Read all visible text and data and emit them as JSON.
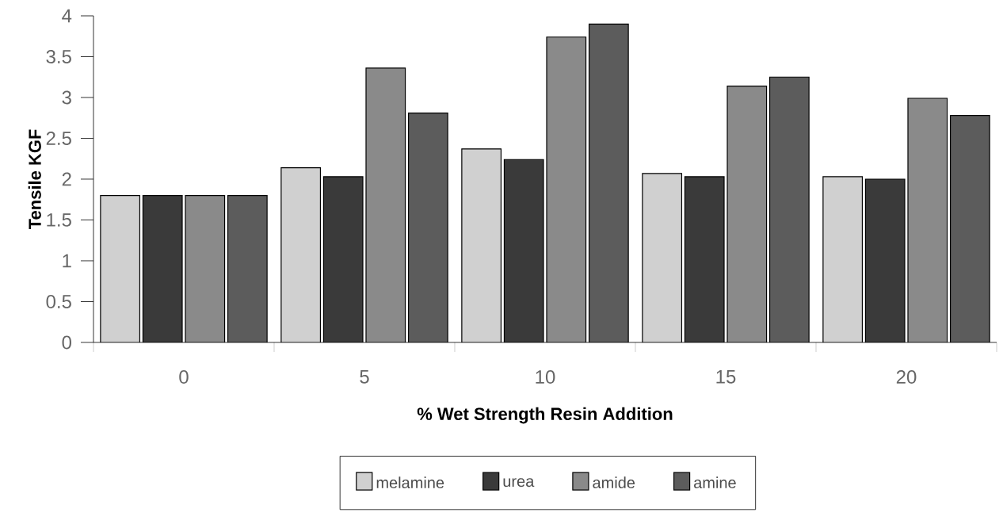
{
  "chart_data": {
    "type": "bar",
    "xlabel": "% Wet Strength Resin Addition",
    "ylabel": "Tensile KGF",
    "categories": [
      "0",
      "5",
      "10",
      "15",
      "20"
    ],
    "series": [
      {
        "name": "melamine",
        "color": "#d0d0d0",
        "values": [
          1.8,
          2.14,
          2.37,
          2.07,
          2.03
        ]
      },
      {
        "name": "urea",
        "color": "#3a3a3a",
        "values": [
          1.8,
          2.03,
          2.24,
          2.03,
          2.0
        ]
      },
      {
        "name": "amide",
        "color": "#8a8a8a",
        "values": [
          1.8,
          3.36,
          3.74,
          3.14,
          2.99
        ]
      },
      {
        "name": "amine",
        "color": "#5c5c5c",
        "values": [
          1.8,
          2.81,
          3.9,
          3.25,
          2.78
        ]
      }
    ],
    "ylim": [
      0,
      4
    ],
    "yticks": [
      0,
      0.5,
      1,
      1.5,
      2,
      2.5,
      3,
      3.5,
      4
    ],
    "legend": "bottom"
  }
}
